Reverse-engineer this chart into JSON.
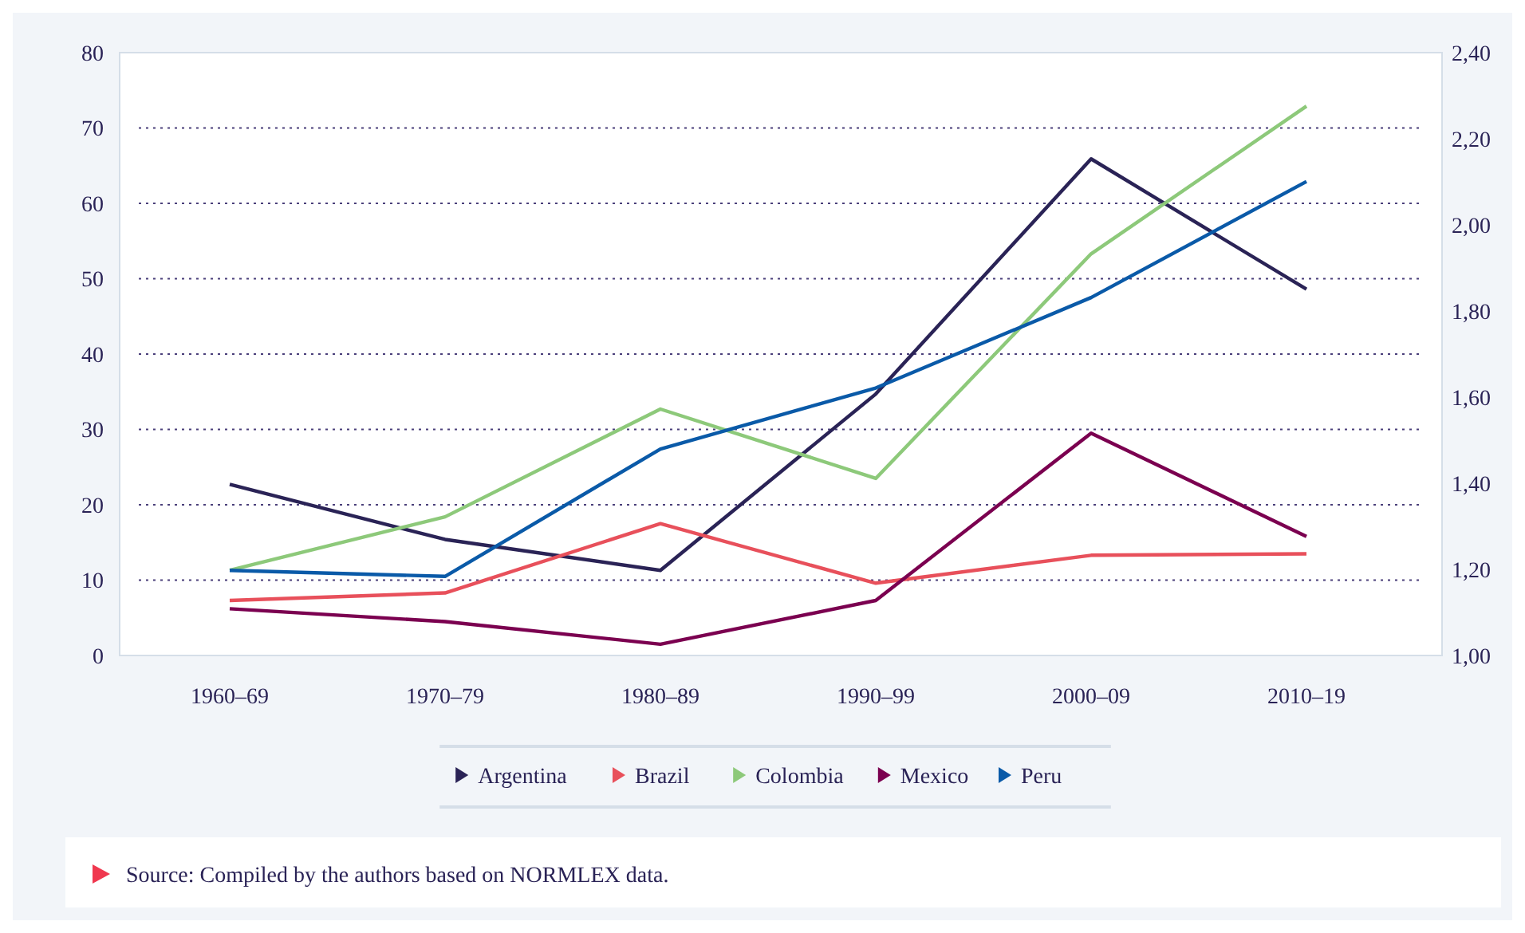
{
  "chart_data": {
    "type": "line",
    "categories": [
      "1960–69",
      "1970–79",
      "1980–89",
      "1990–99",
      "2000–09",
      "2010–19"
    ],
    "series": [
      {
        "name": "Argentina",
        "color": "#2a2356",
        "values": [
          22.7,
          15.4,
          11.3,
          34.7,
          65.9,
          48.6
        ]
      },
      {
        "name": "Brazil",
        "color": "#e8505b",
        "values": [
          7.3,
          8.3,
          17.5,
          9.6,
          13.3,
          13.5
        ]
      },
      {
        "name": "Colombia",
        "color": "#8dc97a",
        "values": [
          11.3,
          18.4,
          32.7,
          23.5,
          53.3,
          72.9
        ]
      },
      {
        "name": "Mexico",
        "color": "#7b0050",
        "values": [
          6.2,
          4.5,
          1.5,
          7.3,
          29.5,
          15.8
        ]
      },
      {
        "name": "Peru",
        "color": "#0a5aa8",
        "values": [
          11.3,
          10.5,
          27.4,
          35.5,
          47.5,
          62.9
        ]
      }
    ],
    "ylim": [
      0,
      80
    ],
    "yticks": [
      0,
      10,
      20,
      30,
      40,
      50,
      60,
      70,
      80
    ],
    "y2lim": [
      1,
      2.4
    ],
    "y2ticks": [
      {
        "value": 1,
        "label": "1,00"
      },
      {
        "value": 1.2,
        "label": "1,20"
      },
      {
        "value": 1.4,
        "label": "1,40"
      },
      {
        "value": 1.6,
        "label": "1,60"
      },
      {
        "value": 1.8,
        "label": "1,80"
      },
      {
        "value": 2,
        "label": "2,00"
      },
      {
        "value": 2.2,
        "label": "2,20"
      },
      {
        "value": 2.4,
        "label": "2,40"
      }
    ],
    "grid": "y",
    "legend": "bottom",
    "marker": "none",
    "line_style": "solid",
    "annotations": [
      "Source: Compiled by the authors based on NORMLEX data."
    ]
  }
}
